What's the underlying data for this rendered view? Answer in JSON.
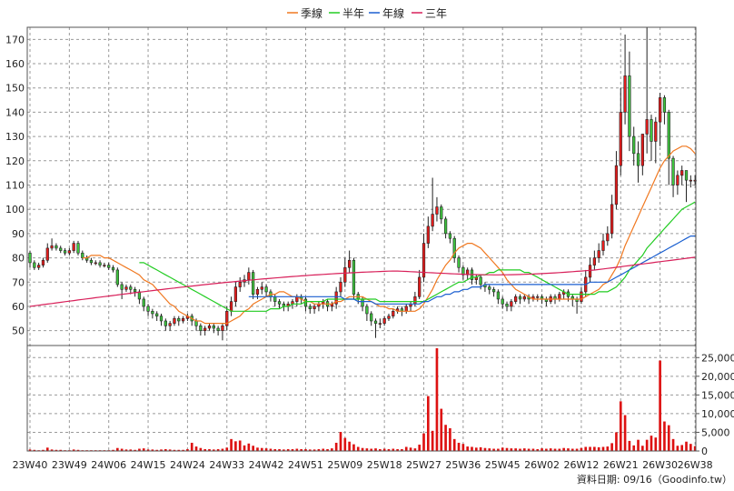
{
  "chart_data": {
    "type": "candlestick",
    "legend": [
      "季線",
      "半年",
      "年線",
      "三年"
    ],
    "series_colors": {
      "quarter": "#f07820",
      "half": "#22cc22",
      "year": "#1a5fd0",
      "three_year": "#d8205a",
      "up": "#e81c1c",
      "down": "#3ec43e",
      "volume": "#dd1111"
    },
    "source_label": "資料日期: 09/16（Goodinfo.tw）",
    "price_axis": {
      "min": 45,
      "max": 175,
      "ticks": [
        50,
        60,
        70,
        80,
        90,
        100,
        110,
        120,
        130,
        140,
        150,
        160,
        170
      ]
    },
    "volume_axis": {
      "min": 0,
      "max": 27500,
      "ticks": [
        0,
        5000,
        10000,
        15000,
        20000,
        25000
      ],
      "tick_labels": [
        "0",
        "5,000",
        "10,000",
        "15,000",
        "20,000",
        "25,000"
      ]
    },
    "x_tick_labels": [
      "23W40",
      "23W49",
      "24W06",
      "24W15",
      "24W24",
      "24W33",
      "24W42",
      "24W51",
      "25W09",
      "25W18",
      "25W27",
      "25W36",
      "25W45",
      "26W02",
      "26W12",
      "26W21",
      "26W30",
      "26W38"
    ],
    "x_tick_index": [
      0,
      9,
      18,
      27,
      36,
      45,
      54,
      63,
      72,
      81,
      90,
      99,
      108,
      117,
      126,
      135,
      144,
      152
    ],
    "close": [
      78,
      76,
      77,
      79,
      84,
      85,
      84,
      83,
      82,
      83,
      86,
      82,
      80,
      79,
      78,
      78,
      77,
      77,
      76,
      75,
      69,
      67,
      68,
      67,
      66,
      63,
      60,
      58,
      57,
      56,
      54,
      52,
      53,
      55,
      54,
      55,
      56,
      54,
      52,
      50,
      51,
      52,
      51,
      50,
      52,
      58,
      62,
      68,
      70,
      71,
      74,
      65,
      67,
      68,
      66,
      64,
      62,
      61,
      60,
      61,
      62,
      64,
      63,
      60,
      59,
      60,
      61,
      62,
      60,
      61,
      66,
      70,
      76,
      79,
      65,
      63,
      60,
      57,
      54,
      53,
      53,
      55,
      56,
      58,
      59,
      58,
      60,
      61,
      64,
      72,
      86,
      93,
      98,
      101,
      96,
      90,
      88,
      80,
      76,
      73,
      75,
      71,
      72,
      69,
      68,
      67,
      66,
      63,
      61,
      60,
      62,
      64,
      63,
      64,
      63,
      64,
      64,
      63,
      62,
      64,
      63,
      65,
      66,
      64,
      63,
      62,
      66,
      72,
      77,
      80,
      83,
      87,
      90,
      102,
      118,
      140,
      155,
      130,
      123,
      118,
      131,
      137,
      128,
      136,
      146,
      140,
      121,
      110,
      114,
      116,
      112,
      112,
      112
    ],
    "open": [
      82,
      78,
      76,
      77,
      79,
      84,
      85,
      84,
      83,
      82,
      83,
      86,
      82,
      80,
      79,
      78,
      78,
      77,
      77,
      76,
      75,
      69,
      67,
      68,
      67,
      66,
      63,
      60,
      58,
      57,
      56,
      54,
      52,
      53,
      55,
      54,
      55,
      56,
      54,
      52,
      50,
      51,
      52,
      51,
      50,
      52,
      58,
      62,
      68,
      70,
      71,
      74,
      65,
      67,
      68,
      66,
      64,
      62,
      61,
      60,
      61,
      62,
      64,
      63,
      60,
      59,
      60,
      61,
      62,
      60,
      61,
      66,
      70,
      76,
      79,
      65,
      63,
      60,
      57,
      54,
      53,
      53,
      55,
      56,
      58,
      59,
      58,
      60,
      61,
      64,
      72,
      86,
      93,
      98,
      101,
      96,
      90,
      88,
      80,
      76,
      73,
      75,
      71,
      72,
      69,
      68,
      67,
      66,
      63,
      61,
      60,
      62,
      64,
      63,
      64,
      63,
      64,
      64,
      63,
      62,
      64,
      63,
      65,
      66,
      64,
      63,
      62,
      66,
      72,
      77,
      80,
      83,
      87,
      90,
      102,
      118,
      140,
      155,
      130,
      123,
      118,
      131,
      137,
      128,
      136,
      146,
      140,
      121,
      110,
      114,
      116,
      112,
      112
    ],
    "high": [
      83,
      79,
      78,
      80,
      86,
      88,
      86,
      85,
      84,
      84,
      87,
      87,
      83,
      81,
      80,
      79,
      79,
      78,
      78,
      77,
      76,
      70,
      69,
      69,
      68,
      67,
      64,
      61,
      59,
      58,
      57,
      55,
      54,
      56,
      56,
      56,
      57,
      57,
      55,
      53,
      52,
      53,
      53,
      52,
      53,
      60,
      64,
      70,
      72,
      73,
      76,
      75,
      68,
      70,
      69,
      67,
      65,
      63,
      62,
      62,
      63,
      65,
      65,
      64,
      61,
      61,
      62,
      63,
      63,
      62,
      68,
      72,
      80,
      83,
      80,
      66,
      64,
      61,
      58,
      55,
      55,
      56,
      57,
      59,
      60,
      60,
      61,
      62,
      66,
      75,
      90,
      97,
      113,
      105,
      102,
      97,
      91,
      89,
      81,
      77,
      76,
      76,
      73,
      73,
      70,
      69,
      68,
      67,
      64,
      62,
      63,
      65,
      65,
      65,
      65,
      65,
      65,
      65,
      64,
      65,
      65,
      66,
      67,
      67,
      65,
      64,
      68,
      75,
      80,
      83,
      86,
      90,
      93,
      106,
      124,
      150,
      172,
      165,
      134,
      128,
      131,
      175,
      139,
      138,
      148,
      147,
      141,
      122,
      116,
      118,
      116,
      114,
      114
    ],
    "low": [
      76,
      75,
      75,
      76,
      78,
      83,
      83,
      82,
      81,
      81,
      82,
      81,
      79,
      78,
      77,
      77,
      76,
      76,
      75,
      74,
      68,
      63,
      66,
      65,
      64,
      61,
      58,
      56,
      55,
      54,
      52,
      50,
      50,
      52,
      52,
      53,
      54,
      52,
      50,
      48,
      48,
      50,
      49,
      48,
      46,
      50,
      56,
      60,
      66,
      68,
      69,
      63,
      63,
      65,
      64,
      62,
      60,
      59,
      58,
      58,
      59,
      60,
      61,
      58,
      57,
      57,
      58,
      59,
      58,
      58,
      59,
      64,
      68,
      74,
      63,
      61,
      58,
      54,
      52,
      47,
      51,
      52,
      54,
      55,
      57,
      56,
      57,
      58,
      60,
      63,
      70,
      84,
      91,
      95,
      94,
      88,
      86,
      78,
      74,
      71,
      71,
      69,
      69,
      67,
      66,
      65,
      64,
      61,
      59,
      58,
      58,
      61,
      61,
      62,
      61,
      62,
      62,
      61,
      60,
      61,
      61,
      62,
      63,
      62,
      60,
      57,
      61,
      64,
      70,
      75,
      78,
      81,
      85,
      88,
      100,
      114,
      135,
      124,
      118,
      111,
      114,
      123,
      120,
      119,
      126,
      135,
      110,
      105,
      106,
      110,
      103,
      109,
      110
    ],
    "volume": [
      400,
      300,
      200,
      300,
      900,
      400,
      300,
      300,
      200,
      200,
      400,
      300,
      200,
      200,
      200,
      200,
      200,
      200,
      200,
      300,
      800,
      600,
      400,
      400,
      300,
      600,
      700,
      400,
      400,
      300,
      400,
      500,
      400,
      300,
      300,
      300,
      500,
      2200,
      1200,
      800,
      500,
      500,
      400,
      500,
      600,
      900,
      3200,
      2600,
      2800,
      1500,
      2000,
      1400,
      900,
      800,
      700,
      600,
      500,
      500,
      400,
      500,
      500,
      600,
      500,
      500,
      400,
      400,
      500,
      600,
      500,
      700,
      2200,
      5100,
      3500,
      2500,
      1800,
      1100,
      800,
      700,
      600,
      700,
      500,
      600,
      500,
      600,
      500,
      500,
      1100,
      900,
      700,
      1700,
      4700,
      14700,
      5400,
      27500,
      11300,
      7000,
      6100,
      3200,
      2200,
      1900,
      1200,
      1100,
      900,
      1000,
      800,
      700,
      600,
      600,
      900,
      800,
      700,
      700,
      600,
      700,
      600,
      600,
      500,
      700,
      600,
      700,
      600,
      600,
      800,
      700,
      600,
      600,
      800,
      1100,
      1100,
      1100,
      1000,
      1100,
      1200,
      2100,
      5000,
      13300,
      9600,
      2700,
      1500,
      3000,
      1400,
      3000,
      4100,
      3600,
      24200,
      7900,
      6900,
      3200,
      1400,
      1600,
      2500,
      1900,
      1300
    ],
    "ma_quarter": [
      null,
      null,
      null,
      null,
      null,
      null,
      null,
      null,
      null,
      null,
      null,
      null,
      80,
      80,
      81,
      81,
      81,
      80,
      80,
      79,
      78,
      77,
      76,
      75,
      74,
      73,
      71,
      70,
      69,
      67,
      65,
      63,
      61,
      60,
      58,
      57,
      56,
      55,
      54,
      54,
      53,
      53,
      53,
      53,
      53,
      53,
      54,
      55,
      56,
      58,
      59,
      61,
      62,
      63,
      64,
      65,
      65,
      66,
      66,
      65,
      64,
      64,
      63,
      62,
      62,
      61,
      61,
      61,
      61,
      61,
      62,
      62,
      63,
      64,
      64,
      64,
      64,
      63,
      62,
      61,
      60,
      60,
      59,
      59,
      58,
      58,
      58,
      58,
      58,
      59,
      61,
      64,
      67,
      71,
      74,
      77,
      79,
      82,
      84,
      85,
      86,
      86,
      85,
      84,
      82,
      80,
      78,
      76,
      74,
      71,
      69,
      67,
      66,
      65,
      64,
      63,
      63,
      63,
      63,
      63,
      63,
      63,
      63,
      63,
      63,
      63,
      63,
      64,
      65,
      66,
      67,
      69,
      70,
      73,
      76,
      80,
      85,
      89,
      93,
      97,
      101,
      105,
      109,
      113,
      117,
      120,
      122,
      124,
      125,
      126,
      126,
      125,
      123
    ],
    "ma_half": [
      null,
      null,
      null,
      null,
      null,
      null,
      null,
      null,
      null,
      null,
      null,
      null,
      null,
      null,
      null,
      null,
      null,
      null,
      null,
      null,
      null,
      null,
      null,
      null,
      null,
      78,
      78,
      77,
      76,
      75,
      74,
      73,
      72,
      71,
      70,
      69,
      68,
      67,
      66,
      65,
      64,
      63,
      62,
      61,
      60,
      59,
      58,
      58,
      58,
      58,
      58,
      58,
      58,
      58,
      58,
      59,
      59,
      59,
      60,
      60,
      61,
      61,
      61,
      62,
      62,
      62,
      62,
      62,
      63,
      63,
      63,
      63,
      63,
      63,
      63,
      63,
      63,
      63,
      63,
      63,
      62,
      62,
      62,
      62,
      62,
      62,
      62,
      62,
      62,
      62,
      62,
      63,
      64,
      65,
      66,
      67,
      68,
      69,
      70,
      70,
      71,
      72,
      72,
      73,
      73,
      74,
      74,
      75,
      75,
      75,
      75,
      75,
      75,
      74,
      74,
      73,
      72,
      71,
      70,
      69,
      68,
      67,
      66,
      65,
      65,
      65,
      65,
      65,
      65,
      65,
      66,
      66,
      66,
      67,
      68,
      70,
      72,
      75,
      77,
      79,
      81,
      84,
      86,
      88,
      90,
      92,
      94,
      96,
      98,
      100,
      101,
      102,
      103
    ],
    "ma_year": [
      null,
      null,
      null,
      null,
      null,
      null,
      null,
      null,
      null,
      null,
      null,
      null,
      null,
      null,
      null,
      null,
      null,
      null,
      null,
      null,
      null,
      null,
      null,
      null,
      null,
      null,
      null,
      null,
      null,
      null,
      null,
      null,
      null,
      null,
      null,
      null,
      null,
      null,
      null,
      null,
      null,
      null,
      null,
      null,
      null,
      null,
      null,
      null,
      null,
      null,
      64,
      64,
      64,
      64,
      64,
      64,
      64,
      64,
      64,
      64,
      64,
      64,
      64,
      64,
      64,
      64,
      64,
      64,
      64,
      64,
      64,
      64,
      63,
      63,
      63,
      62,
      62,
      62,
      62,
      61,
      61,
      61,
      61,
      61,
      61,
      61,
      61,
      61,
      61,
      61,
      62,
      62,
      63,
      64,
      64,
      65,
      65,
      66,
      66,
      67,
      67,
      68,
      68,
      68,
      69,
      69,
      69,
      69,
      69,
      69,
      69,
      69,
      69,
      69,
      69,
      69,
      69,
      69,
      69,
      69,
      69,
      69,
      69,
      69,
      69,
      69,
      69,
      69,
      70,
      70,
      70,
      70,
      70,
      71,
      72,
      73,
      74,
      75,
      76,
      77,
      78,
      79,
      80,
      81,
      82,
      83,
      84,
      85,
      86,
      87,
      88,
      89,
      89
    ]
  }
}
